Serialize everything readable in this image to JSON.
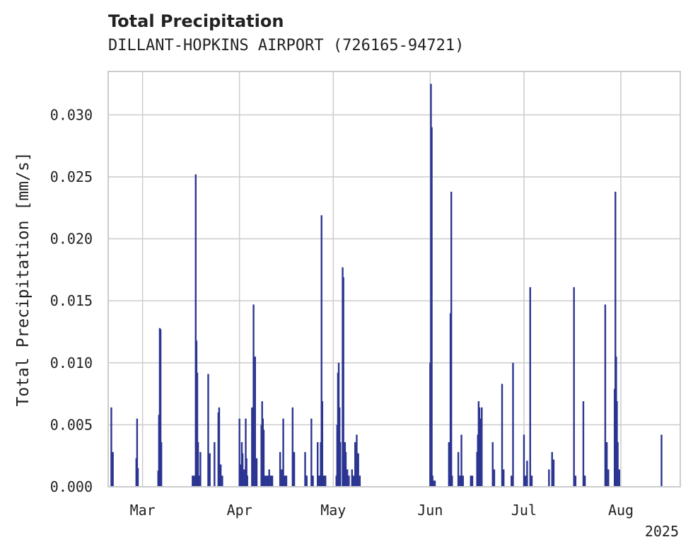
{
  "title": "Total Precipitation",
  "subtitle": "DILLANT-HOPKINS AIRPORT (726165-94721)",
  "chart_data": {
    "type": "bar",
    "title": "Total Precipitation",
    "subtitle": "DILLANT-HOPKINS AIRPORT (726165-94721)",
    "ylabel": "Total Precipitation [mm/s]",
    "xlabel": "",
    "x_tick_labels": [
      "Mar",
      "Apr",
      "May",
      "Jun",
      "Jul",
      "Aug"
    ],
    "x_tick_dates": [
      "2025-03-01",
      "2025-04-01",
      "2025-05-01",
      "2025-06-01",
      "2025-07-01",
      "2025-08-01"
    ],
    "x_year_label": "2025",
    "xlim": [
      "2025-02-18",
      "2025-08-20"
    ],
    "ylim": [
      0,
      0.0335
    ],
    "y_ticks": [
      0.0,
      0.005,
      0.01,
      0.015,
      0.02,
      0.025,
      0.03
    ],
    "y_tick_labels": [
      "0.000",
      "0.005",
      "0.010",
      "0.015",
      "0.020",
      "0.025",
      "0.030"
    ],
    "grid": true,
    "color": "#2b3591",
    "series": [
      {
        "x": [
          "2025-02-19T00:00",
          "2025-02-19T12:00",
          "2025-02-27T00:00",
          "2025-02-27T06:00",
          "2025-02-27T12:00",
          "2025-03-06T00:00",
          "2025-03-06T06:00",
          "2025-03-06T12:00",
          "2025-03-06T18:00",
          "2025-03-07T00:00",
          "2025-03-17T00:00",
          "2025-03-17T12:00",
          "2025-03-18T00:00",
          "2025-03-18T06:00",
          "2025-03-18T12:00",
          "2025-03-18T18:00",
          "2025-03-19T00:00",
          "2025-03-19T12:00",
          "2025-03-22T00:00",
          "2025-03-22T12:00",
          "2025-03-24T00:00",
          "2025-03-25T06:00",
          "2025-03-25T12:00",
          "2025-03-26T00:00",
          "2025-03-26T12:00",
          "2025-04-01T00:00",
          "2025-04-01T06:00",
          "2025-04-01T18:00",
          "2025-04-02T00:00",
          "2025-04-02T12:00",
          "2025-04-03T00:00",
          "2025-04-03T06:00",
          "2025-04-03T12:00",
          "2025-04-05T00:00",
          "2025-04-05T12:00",
          "2025-04-06T00:00",
          "2025-04-06T12:00",
          "2025-04-08T00:00",
          "2025-04-08T06:00",
          "2025-04-08T12:00",
          "2025-04-08T18:00",
          "2025-04-09T00:00",
          "2025-04-09T12:00",
          "2025-04-10T00:00",
          "2025-04-10T12:00",
          "2025-04-11T00:00",
          "2025-04-11T12:00",
          "2025-04-14T00:00",
          "2025-04-14T12:00",
          "2025-04-15T00:00",
          "2025-04-15T12:00",
          "2025-04-16T00:00",
          "2025-04-18T00:00",
          "2025-04-18T12:00",
          "2025-04-22T00:00",
          "2025-04-22T12:00",
          "2025-04-24T00:00",
          "2025-04-24T12:00",
          "2025-04-26T00:00",
          "2025-04-26T12:00",
          "2025-04-27T00:00",
          "2025-04-27T06:00",
          "2025-04-27T12:00",
          "2025-04-27T18:00",
          "2025-04-28T00:00",
          "2025-04-28T12:00",
          "2025-05-02T00:00",
          "2025-05-02T06:00",
          "2025-05-02T12:00",
          "2025-05-02T18:00",
          "2025-05-03T00:00",
          "2025-05-03T06:00",
          "2025-05-04T00:00",
          "2025-05-04T06:00",
          "2025-05-04T12:00",
          "2025-05-04T18:00",
          "2025-05-05T00:00",
          "2025-05-05T12:00",
          "2025-05-06T00:00",
          "2025-05-07T00:00",
          "2025-05-07T12:00",
          "2025-05-08T00:00",
          "2025-05-08T12:00",
          "2025-05-09T00:00",
          "2025-05-09T12:00",
          "2025-06-01T00:00",
          "2025-06-01T06:00",
          "2025-06-01T12:00",
          "2025-06-01T18:00",
          "2025-06-02T00:00",
          "2025-06-02T12:00",
          "2025-06-07T00:00",
          "2025-06-07T06:00",
          "2025-06-07T12:00",
          "2025-06-07T18:00",
          "2025-06-08T00:00",
          "2025-06-10T00:00",
          "2025-06-10T12:00",
          "2025-06-11T00:00",
          "2025-06-11T12:00",
          "2025-06-14T00:00",
          "2025-06-14T12:00",
          "2025-06-16T00:00",
          "2025-06-16T06:00",
          "2025-06-16T12:00",
          "2025-06-16T18:00",
          "2025-06-17T00:00",
          "2025-06-17T12:00",
          "2025-06-21T00:00",
          "2025-06-21T12:00",
          "2025-06-24T00:00",
          "2025-06-24T12:00",
          "2025-06-27T00:00",
          "2025-06-27T12:00",
          "2025-07-01T00:00",
          "2025-07-01T12:00",
          "2025-07-02T00:00",
          "2025-07-03T00:00",
          "2025-07-03T12:00",
          "2025-07-09T00:00",
          "2025-07-10T00:00",
          "2025-07-10T12:00",
          "2025-07-17T00:00",
          "2025-07-17T12:00",
          "2025-07-20T00:00",
          "2025-07-20T12:00",
          "2025-07-27T00:00",
          "2025-07-27T12:00",
          "2025-07-28T00:00",
          "2025-07-30T00:00",
          "2025-07-30T06:00",
          "2025-07-30T12:00",
          "2025-07-30T18:00",
          "2025-07-31T00:00",
          "2025-07-31T12:00",
          "2025-08-14T00:00"
        ],
        "values": [
          0.0064,
          0.0028,
          0.0023,
          0.0055,
          0.0015,
          0.0013,
          0.0058,
          0.0128,
          0.0127,
          0.0036,
          0.0009,
          0.0009,
          0.0252,
          0.0118,
          0.0092,
          0.0036,
          0.0009,
          0.0028,
          0.0091,
          0.0027,
          0.0036,
          0.006,
          0.0064,
          0.0018,
          0.0009,
          0.0055,
          0.0018,
          0.0036,
          0.0027,
          0.0014,
          0.0055,
          0.0023,
          0.0009,
          0.0064,
          0.0147,
          0.0105,
          0.0023,
          0.005,
          0.0069,
          0.0055,
          0.0046,
          0.0009,
          0.0009,
          0.0009,
          0.0014,
          0.0009,
          0.0009,
          0.0028,
          0.0014,
          0.0055,
          0.0009,
          0.0009,
          0.0064,
          0.0028,
          0.0028,
          0.0009,
          0.0055,
          0.0009,
          0.0036,
          0.0009,
          0.0036,
          0.0219,
          0.0069,
          0.0009,
          0.0009,
          0.0009,
          0.0009,
          0.005,
          0.0092,
          0.01,
          0.0064,
          0.0036,
          0.0177,
          0.0169,
          0.0023,
          0.0036,
          0.0028,
          0.0014,
          0.0009,
          0.0014,
          0.0009,
          0.0036,
          0.0042,
          0.0027,
          0.0009,
          0.01,
          0.0325,
          0.029,
          0.0009,
          0.0005,
          0.0005,
          0.0036,
          0.0023,
          0.014,
          0.0238,
          0.0009,
          0.0028,
          0.0009,
          0.0042,
          0.0009,
          0.0009,
          0.0009,
          0.0028,
          0.0042,
          0.0069,
          0.0064,
          0.0055,
          0.0064,
          0.0036,
          0.0014,
          0.0083,
          0.0014,
          0.0009,
          0.01,
          0.0042,
          0.0009,
          0.0021,
          0.0161,
          0.0009,
          0.0014,
          0.0028,
          0.0022,
          0.0161,
          0.0009,
          0.0069,
          0.0009,
          0.0147,
          0.0036,
          0.0014,
          0.0079,
          0.0238,
          0.0105,
          0.0069,
          0.0036,
          0.0014,
          0.0042
        ]
      }
    ]
  }
}
